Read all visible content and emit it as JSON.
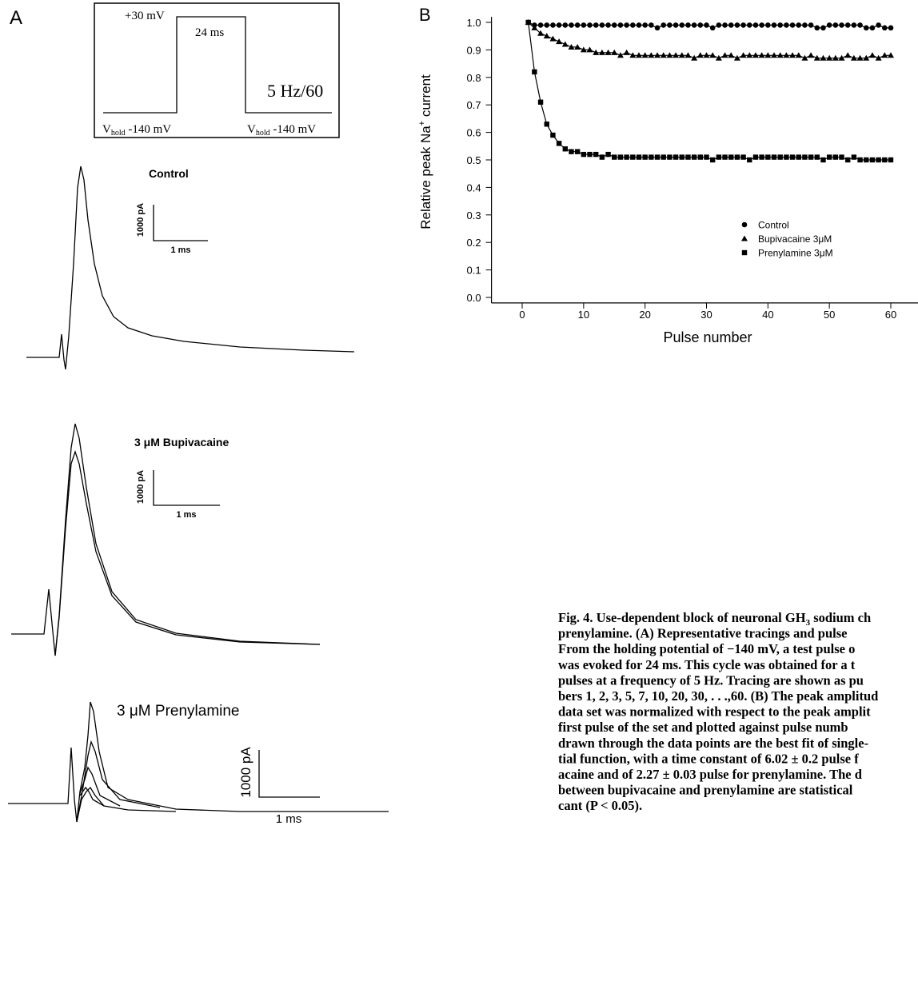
{
  "panel_a": {
    "label": "A",
    "protocol": {
      "pulse_level": "+30 mV",
      "duration": "24 ms",
      "frequency": "5 Hz/60",
      "hold_left": [
        "V",
        "hold",
        " -140 mV"
      ],
      "hold_right": [
        "V",
        "hold",
        " -140 mV"
      ]
    },
    "traces": [
      {
        "title": "Control",
        "scale_y": "1000 pA",
        "scale_x": "1 ms"
      },
      {
        "title": "3 μM Bupivacaine",
        "scale_y": "1000 pA",
        "scale_x": "1 ms"
      },
      {
        "title": "3 μM Prenylamine",
        "scale_y": "1000 pA",
        "scale_x": "1 ms"
      }
    ]
  },
  "chart_data": {
    "type": "scatter",
    "panel_label": "B",
    "xlabel": "Pulse number",
    "ylabel": [
      "Relative peak Na",
      "+",
      " current"
    ],
    "xlim": [
      -5,
      65
    ],
    "ylim": [
      -0.02,
      1.02
    ],
    "xticks": [
      0,
      10,
      20,
      30,
      40,
      50,
      60
    ],
    "yticks": [
      {
        "value": 0,
        "label": "0.0"
      },
      {
        "value": 0.1,
        "label": "0.1"
      },
      {
        "value": 0.2,
        "label": "0.2"
      },
      {
        "value": 0.3,
        "label": "0.3"
      },
      {
        "value": 0.4,
        "label": "0.4"
      },
      {
        "value": 0.5,
        "label": "0.5"
      },
      {
        "value": 0.6,
        "label": "0.6"
      },
      {
        "value": 0.7,
        "label": "0.7"
      },
      {
        "value": 0.8,
        "label": "0.8"
      },
      {
        "value": 0.9,
        "label": "0.9"
      },
      {
        "value": 1.0,
        "label": "1.0"
      }
    ],
    "x": [
      1,
      2,
      3,
      4,
      5,
      6,
      7,
      8,
      9,
      10,
      11,
      12,
      13,
      14,
      15,
      16,
      17,
      18,
      19,
      20,
      21,
      22,
      23,
      24,
      25,
      26,
      27,
      28,
      29,
      30,
      31,
      32,
      33,
      34,
      35,
      36,
      37,
      38,
      39,
      40,
      41,
      42,
      43,
      44,
      45,
      46,
      47,
      48,
      49,
      50,
      51,
      52,
      53,
      54,
      55,
      56,
      57,
      58,
      59,
      60
    ],
    "series": [
      {
        "name": "Control",
        "color": "#000000",
        "marker": "circle",
        "values": [
          1.0,
          0.99,
          0.99,
          0.99,
          0.99,
          0.99,
          0.99,
          0.99,
          0.99,
          0.99,
          0.99,
          0.99,
          0.99,
          0.99,
          0.99,
          0.99,
          0.99,
          0.99,
          0.99,
          0.99,
          0.99,
          0.98,
          0.99,
          0.99,
          0.99,
          0.99,
          0.99,
          0.99,
          0.99,
          0.99,
          0.98,
          0.99,
          0.99,
          0.99,
          0.99,
          0.99,
          0.99,
          0.99,
          0.99,
          0.99,
          0.99,
          0.99,
          0.99,
          0.99,
          0.99,
          0.99,
          0.99,
          0.98,
          0.98,
          0.99,
          0.99,
          0.99,
          0.99,
          0.99,
          0.99,
          0.98,
          0.98,
          0.99,
          0.98,
          0.98
        ]
      },
      {
        "name": "Bupivacaine 3μM",
        "color": "#000000",
        "marker": "triangle",
        "values": [
          1.0,
          0.98,
          0.96,
          0.95,
          0.94,
          0.93,
          0.92,
          0.91,
          0.91,
          0.9,
          0.9,
          0.89,
          0.89,
          0.89,
          0.89,
          0.88,
          0.89,
          0.88,
          0.88,
          0.88,
          0.88,
          0.88,
          0.88,
          0.88,
          0.88,
          0.88,
          0.88,
          0.87,
          0.88,
          0.88,
          0.88,
          0.87,
          0.88,
          0.88,
          0.87,
          0.88,
          0.88,
          0.88,
          0.88,
          0.88,
          0.88,
          0.88,
          0.88,
          0.88,
          0.88,
          0.87,
          0.88,
          0.87,
          0.87,
          0.87,
          0.87,
          0.87,
          0.88,
          0.87,
          0.87,
          0.87,
          0.88,
          0.87,
          0.88,
          0.88
        ]
      },
      {
        "name": "Prenylamine 3μM",
        "color": "#000000",
        "marker": "square",
        "values": [
          1.0,
          0.82,
          0.71,
          0.63,
          0.59,
          0.56,
          0.54,
          0.53,
          0.53,
          0.52,
          0.52,
          0.52,
          0.51,
          0.52,
          0.51,
          0.51,
          0.51,
          0.51,
          0.51,
          0.51,
          0.51,
          0.51,
          0.51,
          0.51,
          0.51,
          0.51,
          0.51,
          0.51,
          0.51,
          0.51,
          0.5,
          0.51,
          0.51,
          0.51,
          0.51,
          0.51,
          0.5,
          0.51,
          0.51,
          0.51,
          0.51,
          0.51,
          0.51,
          0.51,
          0.51,
          0.51,
          0.51,
          0.51,
          0.5,
          0.51,
          0.51,
          0.51,
          0.5,
          0.51,
          0.5,
          0.5,
          0.5,
          0.5,
          0.5,
          0.5
        ]
      }
    ]
  },
  "caption": {
    "line_1": [
      "Fig. 4. Use-dependent block of neuronal GH",
      "3",
      " sodium ch"
    ],
    "lines": [
      "prenylamine. (A) Representative tracings and pulse",
      "From the holding potential of −140 mV, a test pulse o",
      "was evoked for 24 ms. This cycle was obtained for a t",
      "pulses at a frequency of 5 Hz. Tracing are shown as pu",
      "bers 1, 2, 3, 5, 7, 10, 20, 30, . . .,60. (B) The peak amplitud",
      "data set was normalized with respect to the peak amplit",
      "first pulse of the set and plotted against pulse numb",
      "drawn through the data points are the best fit of single-",
      "tial function, with a time constant of 6.02 ± 0.2 pulse f",
      "acaine and of 2.27 ± 0.03 pulse for prenylamine. The d",
      "between bupivacaine and prenylamine are statistical",
      "cant (P < 0.05)."
    ]
  }
}
